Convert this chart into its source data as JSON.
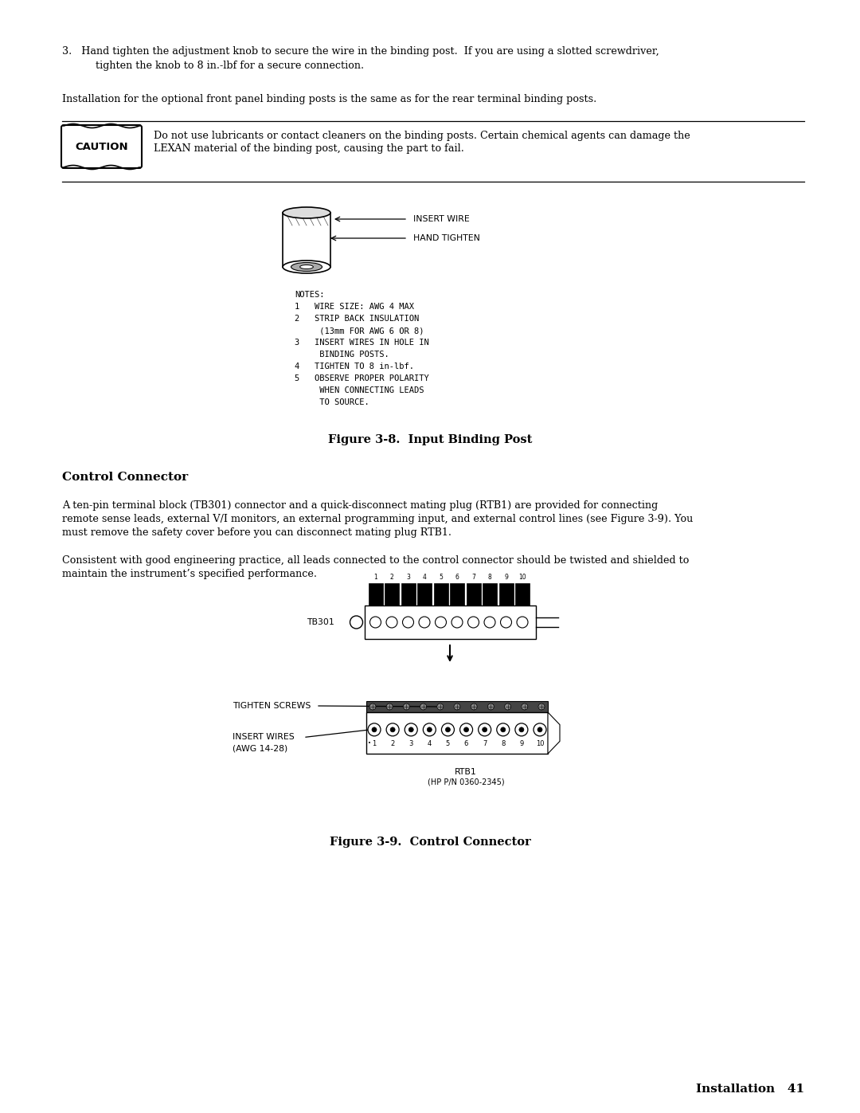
{
  "bg_color": "#ffffff",
  "text_color": "#000000",
  "body_text_size": 9.2,
  "small_text_size": 7.8,
  "mono_text_size": 7.5,
  "fig_caption_size": 10.5,
  "section_header_size": 11.0,
  "item3_text_line1": "3.   Hand tighten the adjustment knob to secure the wire in the binding post.  If you are using a slotted screwdriver,",
  "item3_text_line2": "      tighten the knob to 8 in.-lbf for a secure connection.",
  "install_text": "Installation for the optional front panel binding posts is the same as for the rear terminal binding posts.",
  "caution_label": "CAUTION",
  "caution_text_line1": "Do not use lubricants or contact cleaners on the binding posts. Certain chemical agents can damage the",
  "caution_text_line2": "LEXAN material of the binding post, causing the part to fail.",
  "notes_lines": [
    "NOTES:",
    "1   WIRE SIZE: AWG 4 MAX",
    "2   STRIP BACK INSULATION",
    "     (13mm FOR AWG 6 OR 8)",
    "3   INSERT WIRES IN HOLE IN",
    "     BINDING POSTS.",
    "4   TIGHTEN TO 8 in-lbf.",
    "5   OBSERVE PROPER POLARITY",
    "     WHEN CONNECTING LEADS",
    "     TO SOURCE."
  ],
  "fig38_caption": "Figure 3-8.  Input Binding Post",
  "section_header": "Control Connector",
  "cc_para1_line1": "A ten-pin terminal block (TB301) connector and a quick-disconnect mating plug (RTB1) are provided for connecting",
  "cc_para1_line2": "remote sense leads, external V/I monitors, an external programming input, and external control lines (see Figure 3-9). You",
  "cc_para1_line3": "must remove the safety cover before you can disconnect mating plug RTB1.",
  "cc_para2_line1": "Consistent with good engineering practice, all leads connected to the control connector should be twisted and shielded to",
  "cc_para2_line2": "maintain the instrument’s specified performance.",
  "fig39_caption": "Figure 3-9.  Control Connector",
  "page_footer": "Installation   41"
}
